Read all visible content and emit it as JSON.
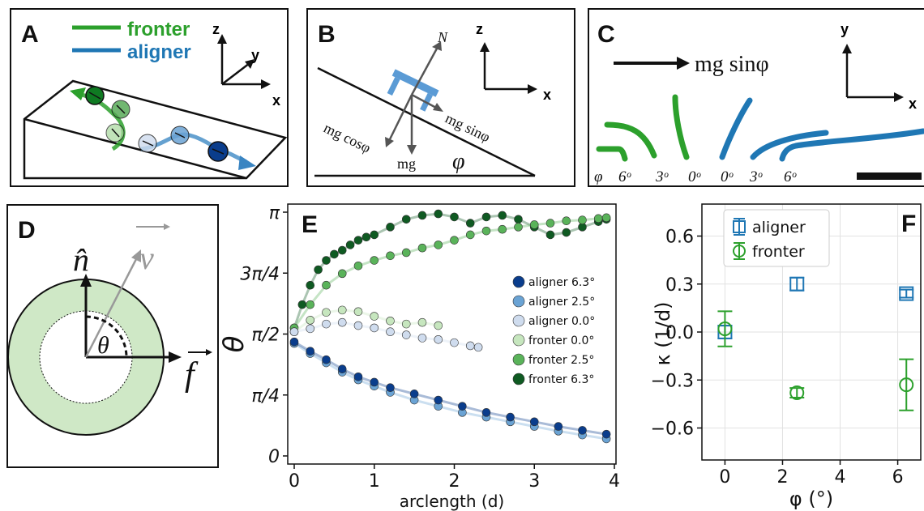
{
  "panels": {
    "A": {
      "label": "A",
      "legend": [
        {
          "name": "fronter",
          "color": "#2ca02c"
        },
        {
          "name": "aligner",
          "color": "#1f77b4"
        }
      ],
      "axes": {
        "z": "z",
        "y": "y",
        "x": "x"
      }
    },
    "B": {
      "label": "B",
      "force_normal": "N",
      "force_cos": "mg cosφ",
      "force_sin": "mg sinφ",
      "force_weight": "mg",
      "angle": "φ",
      "axes": {
        "z": "z",
        "x": "x"
      }
    },
    "C": {
      "label": "C",
      "arrow_text": "mg sinφ",
      "axes": {
        "y": "y",
        "x": "x"
      },
      "angle_labels": [
        "φ",
        "6ᵒ",
        "3ᵒ",
        "0ᵒ",
        "0ᵒ",
        "3ᵒ",
        "6ᵒ"
      ]
    },
    "D": {
      "label": "D",
      "v_label": "v",
      "n_label": "n̂",
      "f_label": "f",
      "theta_label": "θ"
    }
  },
  "colors": {
    "fronter": "#2ca02c",
    "aligner": "#1f77b4",
    "fronter_6_3": "#0f5a22",
    "fronter_2_5": "#5ab35a",
    "fronter_0_0": "#c6e6be",
    "aligner_0_0": "#cfdcee",
    "aligner_2_5": "#6aa3d4",
    "aligner_6_3": "#0a3d8c",
    "ring_fill": "#cfe8c6"
  },
  "chart_data": [
    {
      "panel": "E",
      "label": "E",
      "type": "scatter",
      "xlabel": "arclength (d)",
      "ylabel": "θ",
      "xlim": [
        0,
        4
      ],
      "ylim": [
        0,
        3.1416
      ],
      "x_ticks": [
        0,
        1,
        2,
        3,
        4
      ],
      "x_tick_labels": [
        "0",
        "1",
        "2",
        "3",
        "4"
      ],
      "y_ticks": [
        0,
        0.7854,
        1.5708,
        2.3562,
        3.1416
      ],
      "y_tick_labels": [
        "0",
        "π/4",
        "π/2",
        "3π/4",
        "π"
      ],
      "legend_position": "right",
      "series": [
        {
          "name": "fronter 6.3°",
          "color": "#0f5a22",
          "x": [
            0,
            0.1,
            0.2,
            0.3,
            0.4,
            0.5,
            0.6,
            0.7,
            0.8,
            0.9,
            1.0,
            1.2,
            1.4,
            1.6,
            1.8,
            2.0,
            2.2,
            2.4,
            2.6,
            2.8,
            3.0,
            3.2,
            3.4,
            3.6,
            3.8,
            3.9
          ],
          "y": [
            1.65,
            1.95,
            2.2,
            2.4,
            2.52,
            2.6,
            2.65,
            2.72,
            2.78,
            2.82,
            2.85,
            2.95,
            3.05,
            3.1,
            3.12,
            3.08,
            3.0,
            3.08,
            3.1,
            3.05,
            2.95,
            2.85,
            2.88,
            2.95,
            3.02,
            3.05
          ]
        },
        {
          "name": "fronter 2.5°",
          "color": "#5ab35a",
          "x": [
            0,
            0.2,
            0.4,
            0.6,
            0.8,
            1.0,
            1.2,
            1.4,
            1.6,
            1.8,
            2.0,
            2.2,
            2.4,
            2.6,
            2.8,
            3.0,
            3.2,
            3.4,
            3.6,
            3.8,
            3.9
          ],
          "y": [
            1.65,
            1.95,
            2.2,
            2.35,
            2.45,
            2.52,
            2.58,
            2.62,
            2.68,
            2.72,
            2.78,
            2.85,
            2.9,
            2.92,
            2.95,
            2.98,
            3.0,
            3.03,
            3.04,
            3.06,
            3.07
          ]
        },
        {
          "name": "fronter 0.0°",
          "color": "#c6e6be",
          "x": [
            0,
            0.2,
            0.4,
            0.6,
            0.8,
            1.0,
            1.2,
            1.4,
            1.6,
            1.8
          ],
          "y": [
            1.6,
            1.75,
            1.85,
            1.88,
            1.86,
            1.8,
            1.74,
            1.7,
            1.72,
            1.68
          ]
        },
        {
          "name": "aligner 0.0°",
          "color": "#cfdcee",
          "x": [
            0,
            0.2,
            0.4,
            0.6,
            0.8,
            1.0,
            1.2,
            1.4,
            1.6,
            1.8,
            2.0,
            2.2,
            2.3
          ],
          "y": [
            1.6,
            1.64,
            1.7,
            1.72,
            1.68,
            1.65,
            1.6,
            1.56,
            1.52,
            1.5,
            1.46,
            1.42,
            1.4
          ]
        },
        {
          "name": "aligner 2.5°",
          "color": "#6aa3d4",
          "x": [
            0,
            0.2,
            0.4,
            0.6,
            0.8,
            1.0,
            1.2,
            1.5,
            1.8,
            2.1,
            2.4,
            2.7,
            3.0,
            3.3,
            3.6,
            3.9
          ],
          "y": [
            1.45,
            1.32,
            1.2,
            1.08,
            0.98,
            0.9,
            0.82,
            0.72,
            0.64,
            0.56,
            0.5,
            0.44,
            0.38,
            0.32,
            0.27,
            0.22
          ]
        },
        {
          "name": "aligner 6.3°",
          "color": "#0a3d8c",
          "x": [
            0,
            0.2,
            0.4,
            0.6,
            0.8,
            1.0,
            1.2,
            1.5,
            1.8,
            2.1,
            2.4,
            2.7,
            3.0,
            3.3,
            3.6,
            3.9
          ],
          "y": [
            1.47,
            1.35,
            1.24,
            1.12,
            1.02,
            0.95,
            0.88,
            0.8,
            0.72,
            0.64,
            0.56,
            0.5,
            0.44,
            0.38,
            0.33,
            0.28
          ]
        }
      ]
    },
    {
      "panel": "F",
      "label": "F",
      "type": "scatter",
      "xlabel": "φ (°)",
      "ylabel": "κ (1/d)",
      "xlim": [
        -0.8,
        6.8
      ],
      "ylim": [
        -0.8,
        0.8
      ],
      "x_ticks": [
        0,
        2,
        4,
        6
      ],
      "x_tick_labels": [
        "0",
        "2",
        "4",
        "6"
      ],
      "y_ticks": [
        -0.6,
        -0.3,
        0.0,
        0.3,
        0.6
      ],
      "y_tick_labels": [
        "−0.6",
        "−0.3",
        "0.0",
        "0.3",
        "0.6"
      ],
      "grid": true,
      "legend_position": "top-left",
      "series": [
        {
          "name": "aligner",
          "color": "#1f77b4",
          "marker": "square",
          "x": [
            0.0,
            2.5,
            6.3
          ],
          "y": [
            0.0,
            0.3,
            0.24
          ],
          "err": [
            0.04,
            0.04,
            0.025
          ]
        },
        {
          "name": "fronter",
          "color": "#2ca02c",
          "marker": "circle",
          "x": [
            0.0,
            2.5,
            6.3
          ],
          "y": [
            0.02,
            -0.38,
            -0.33
          ],
          "err": [
            0.11,
            0.03,
            0.16
          ]
        }
      ]
    }
  ]
}
